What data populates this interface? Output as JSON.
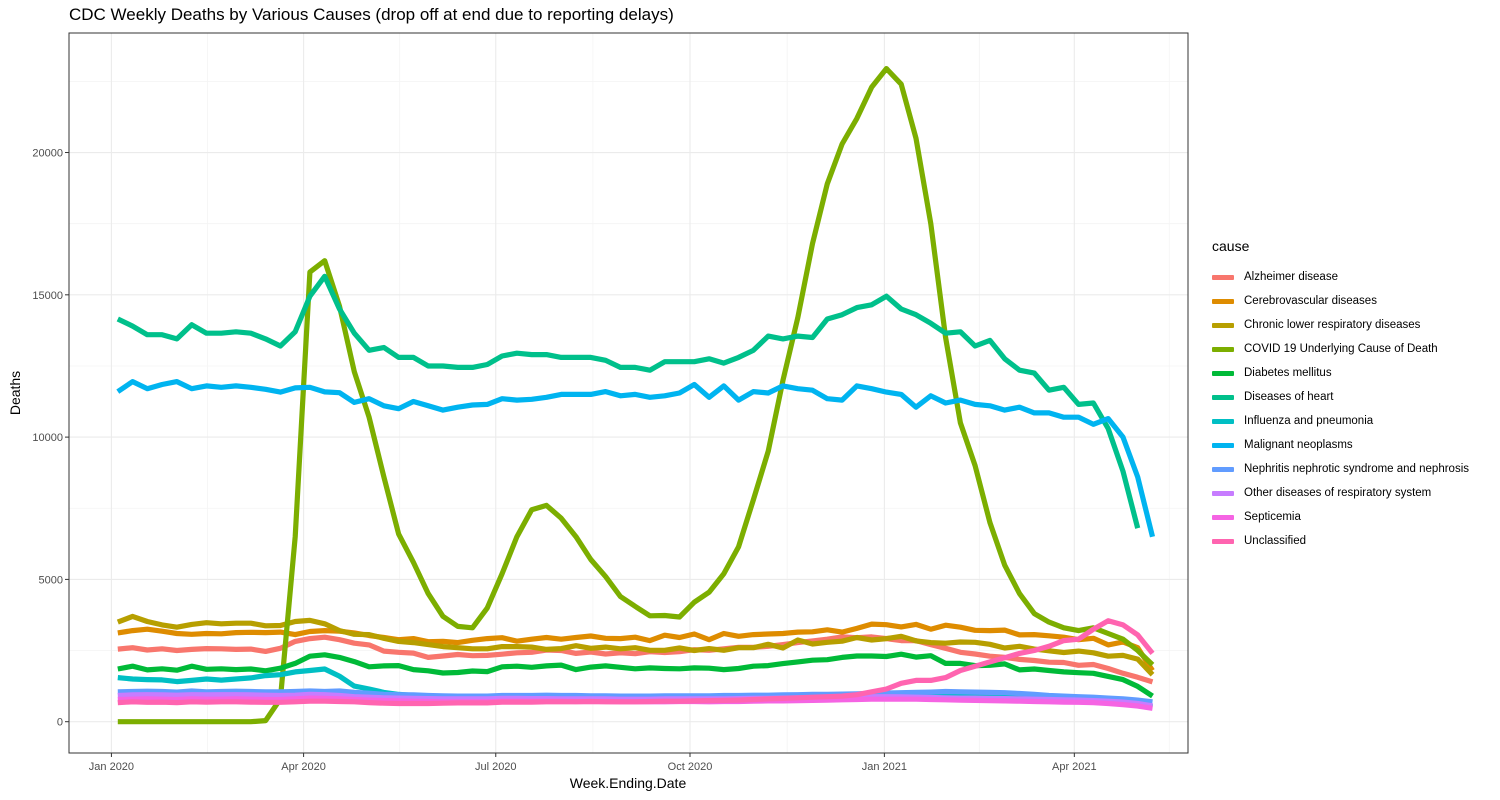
{
  "chart_data": {
    "type": "line",
    "title": "CDC Weekly Deaths by Various Causes (drop off at end due to reporting delays)",
    "xlabel": "Week.Ending.Date",
    "ylabel": "Deaths",
    "legend_title": "cause",
    "legend_position": "right",
    "grid": true,
    "x_start": "2020-01-04",
    "x_interval_days": 7,
    "x_ticks": [
      {
        "label": "Jan 2020",
        "week": -0.43
      },
      {
        "label": "Apr 2020",
        "week": 12.57
      },
      {
        "label": "Jul 2020",
        "week": 25.57
      },
      {
        "label": "Oct 2020",
        "week": 38.71
      },
      {
        "label": "Jan 2021",
        "week": 51.86
      },
      {
        "label": "Apr 2021",
        "week": 64.71
      }
    ],
    "xlim": [
      -3.3,
      72.4
    ],
    "y_ticks": [
      0,
      5000,
      10000,
      15000,
      20000
    ],
    "ylim": [
      -1100,
      24200
    ],
    "series": [
      {
        "name": "Alzheimer disease",
        "color": "#F8766D",
        "values": [
          2550,
          2600,
          2520,
          2560,
          2500,
          2540,
          2570,
          2560,
          2540,
          2550,
          2470,
          2580,
          2820,
          2920,
          2970,
          2880,
          2760,
          2700,
          2480,
          2440,
          2410,
          2260,
          2310,
          2360,
          2320,
          2330,
          2370,
          2420,
          2440,
          2520,
          2500,
          2400,
          2450,
          2380,
          2420,
          2390,
          2460,
          2430,
          2460,
          2530,
          2510,
          2560,
          2610,
          2610,
          2650,
          2710,
          2780,
          2840,
          2900,
          2980,
          2950,
          2980,
          2920,
          2850,
          2850,
          2710,
          2580,
          2440,
          2380,
          2300,
          2260,
          2190,
          2150,
          2090,
          2080,
          1980,
          2010,
          1870,
          1700,
          1560,
          1400
        ]
      },
      {
        "name": "Cerebrovascular diseases",
        "color": "#DE8C00",
        "values": [
          3120,
          3200,
          3250,
          3180,
          3100,
          3070,
          3100,
          3090,
          3130,
          3140,
          3130,
          3150,
          3060,
          3170,
          3200,
          3180,
          3120,
          3030,
          2960,
          2880,
          2920,
          2810,
          2820,
          2780,
          2860,
          2920,
          2950,
          2830,
          2900,
          2960,
          2900,
          2960,
          3010,
          2930,
          2920,
          2970,
          2850,
          3040,
          2960,
          3080,
          2880,
          3100,
          3000,
          3060,
          3080,
          3100,
          3150,
          3160,
          3230,
          3150,
          3280,
          3430,
          3410,
          3330,
          3420,
          3250,
          3390,
          3320,
          3210,
          3200,
          3220,
          3050,
          3060,
          3020,
          2970,
          2880,
          2930,
          2700,
          2800,
          2600,
          1800
        ]
      },
      {
        "name": "Chronic lower respiratory diseases",
        "color": "#B79F00",
        "values": [
          3500,
          3700,
          3520,
          3400,
          3320,
          3420,
          3480,
          3440,
          3460,
          3460,
          3370,
          3380,
          3520,
          3560,
          3440,
          3200,
          3070,
          3060,
          2930,
          2820,
          2780,
          2710,
          2640,
          2600,
          2560,
          2560,
          2640,
          2640,
          2620,
          2540,
          2570,
          2670,
          2580,
          2620,
          2560,
          2600,
          2510,
          2510,
          2590,
          2500,
          2570,
          2510,
          2600,
          2600,
          2720,
          2590,
          2870,
          2730,
          2790,
          2830,
          2960,
          2870,
          2920,
          3000,
          2840,
          2780,
          2760,
          2800,
          2790,
          2720,
          2590,
          2650,
          2550,
          2490,
          2430,
          2480,
          2420,
          2300,
          2330,
          2200,
          1650
        ]
      },
      {
        "name": "COVID 19 Underlying Cause of Death",
        "color": "#7CAE00",
        "values": [
          0,
          0,
          0,
          0,
          0,
          0,
          0,
          0,
          0,
          0,
          40,
          800,
          6500,
          15800,
          16200,
          14600,
          12300,
          10700,
          8600,
          6600,
          5600,
          4500,
          3700,
          3350,
          3300,
          4000,
          5200,
          6500,
          7450,
          7600,
          7150,
          6500,
          5700,
          5100,
          4400,
          4050,
          3720,
          3730,
          3680,
          4200,
          4550,
          5200,
          6150,
          7800,
          9500,
          12000,
          14200,
          16800,
          18900,
          20300,
          21200,
          22300,
          22950,
          22400,
          20500,
          17500,
          13500,
          10500,
          9000,
          7000,
          5500,
          4500,
          3800,
          3500,
          3300,
          3200,
          3300,
          3100,
          2900,
          2500,
          2000
        ]
      },
      {
        "name": "Diabetes mellitus",
        "color": "#00BA38",
        "values": [
          1850,
          1950,
          1820,
          1860,
          1810,
          1950,
          1840,
          1860,
          1830,
          1850,
          1790,
          1880,
          2050,
          2300,
          2350,
          2260,
          2110,
          1930,
          1960,
          1970,
          1830,
          1790,
          1710,
          1730,
          1780,
          1760,
          1930,
          1950,
          1910,
          1960,
          1990,
          1830,
          1920,
          1960,
          1910,
          1860,
          1890,
          1870,
          1860,
          1890,
          1880,
          1830,
          1870,
          1950,
          1970,
          2040,
          2100,
          2160,
          2180,
          2260,
          2310,
          2310,
          2290,
          2370,
          2270,
          2320,
          2050,
          2050,
          1970,
          1980,
          2030,
          1820,
          1850,
          1800,
          1750,
          1720,
          1700,
          1590,
          1480,
          1240,
          900
        ]
      },
      {
        "name": "Diseases of heart",
        "color": "#00C08B",
        "values": [
          14150,
          13900,
          13600,
          13600,
          13450,
          13950,
          13650,
          13650,
          13700,
          13650,
          13450,
          13200,
          13700,
          14950,
          15650,
          14500,
          13650,
          13050,
          13150,
          12800,
          12800,
          12500,
          12500,
          12450,
          12450,
          12550,
          12850,
          12950,
          12900,
          12900,
          12800,
          12800,
          12800,
          12700,
          12450,
          12450,
          12350,
          12650,
          12650,
          12650,
          12750,
          12600,
          12800,
          13050,
          13550,
          13450,
          13550,
          13500,
          14150,
          14300,
          14550,
          14650,
          14950,
          14500,
          14300,
          14000,
          13650,
          13700,
          13200,
          13400,
          12750,
          12350,
          12250,
          11650,
          11750,
          11150,
          11200,
          10300,
          8800,
          6800,
          null
        ]
      },
      {
        "name": "Influenza and pneumonia",
        "color": "#00BFC4",
        "values": [
          1550,
          1500,
          1480,
          1470,
          1410,
          1450,
          1500,
          1460,
          1500,
          1540,
          1620,
          1650,
          1750,
          1800,
          1850,
          1600,
          1250,
          1150,
          1030,
          960,
          920,
          890,
          880,
          900,
          890,
          890,
          900,
          900,
          910,
          900,
          890,
          870,
          870,
          870,
          880,
          860,
          870,
          870,
          870,
          880,
          870,
          880,
          880,
          890,
          900,
          880,
          900,
          900,
          900,
          920,
          930,
          930,
          950,
          960,
          950,
          950,
          950,
          920,
          900,
          880,
          860,
          850,
          840,
          820,
          790,
          780,
          760,
          740,
          690,
          620,
          520
        ]
      },
      {
        "name": "Malignant neoplasms",
        "color": "#00B4F0",
        "values": [
          11600,
          11950,
          11700,
          11850,
          11950,
          11700,
          11800,
          11750,
          11800,
          11750,
          11680,
          11580,
          11730,
          11750,
          11590,
          11560,
          11220,
          11350,
          11100,
          11000,
          11250,
          11100,
          10950,
          11050,
          11130,
          11150,
          11350,
          11300,
          11330,
          11400,
          11500,
          11500,
          11500,
          11600,
          11450,
          11500,
          11400,
          11450,
          11550,
          11850,
          11400,
          11800,
          11300,
          11600,
          11550,
          11800,
          11700,
          11650,
          11350,
          11300,
          11800,
          11700,
          11580,
          11500,
          11050,
          11450,
          11200,
          11300,
          11150,
          11100,
          10950,
          11050,
          10850,
          10850,
          10700,
          10700,
          10450,
          10650,
          10000,
          8600,
          6500
        ]
      },
      {
        "name": "Nephritis nephrotic syndrome and nephrosis",
        "color": "#619CFF",
        "values": [
          1050,
          1060,
          1070,
          1060,
          1040,
          1080,
          1050,
          1060,
          1070,
          1060,
          1050,
          1050,
          1060,
          1080,
          1060,
          1080,
          1030,
          1000,
          960,
          950,
          940,
          920,
          910,
          900,
          900,
          900,
          920,
          920,
          920,
          930,
          920,
          920,
          910,
          910,
          900,
          900,
          900,
          910,
          910,
          910,
          910,
          920,
          920,
          930,
          930,
          940,
          950,
          960,
          960,
          970,
          980,
          1000,
          1010,
          1020,
          1030,
          1040,
          1060,
          1050,
          1040,
          1030,
          1020,
          990,
          960,
          920,
          900,
          880,
          860,
          830,
          800,
          760,
          700
        ]
      },
      {
        "name": "Other diseases of respiratory system",
        "color": "#C77CFF",
        "values": [
          920,
          940,
          950,
          940,
          930,
          950,
          940,
          950,
          950,
          940,
          930,
          920,
          930,
          960,
          950,
          920,
          880,
          860,
          840,
          830,
          820,
          810,
          800,
          800,
          800,
          800,
          820,
          820,
          810,
          810,
          800,
          800,
          800,
          800,
          790,
          790,
          790,
          800,
          800,
          800,
          800,
          800,
          810,
          820,
          820,
          830,
          840,
          840,
          850,
          860,
          870,
          880,
          880,
          870,
          860,
          850,
          840,
          830,
          830,
          820,
          810,
          800,
          790,
          780,
          770,
          760,
          740,
          720,
          690,
          640,
          560
        ]
      },
      {
        "name": "Septicemia",
        "color": "#F564E3",
        "values": [
          780,
          790,
          800,
          790,
          780,
          800,
          790,
          790,
          800,
          790,
          780,
          780,
          800,
          830,
          820,
          800,
          780,
          760,
          740,
          730,
          720,
          710,
          700,
          700,
          700,
          700,
          720,
          720,
          720,
          720,
          720,
          710,
          710,
          710,
          700,
          700,
          700,
          700,
          710,
          710,
          700,
          710,
          710,
          720,
          730,
          730,
          740,
          750,
          760,
          770,
          780,
          790,
          790,
          790,
          790,
          780,
          770,
          760,
          750,
          740,
          730,
          720,
          710,
          700,
          690,
          680,
          670,
          640,
          600,
          550,
          470
        ]
      },
      {
        "name": "Unclassified",
        "color": "#FF64B0",
        "values": [
          670,
          700,
          680,
          690,
          670,
          700,
          690,
          700,
          700,
          690,
          680,
          680,
          700,
          720,
          720,
          710,
          700,
          670,
          650,
          640,
          640,
          640,
          650,
          660,
          660,
          660,
          690,
          690,
          690,
          700,
          700,
          700,
          710,
          700,
          700,
          700,
          710,
          720,
          720,
          730,
          740,
          750,
          760,
          780,
          800,
          820,
          840,
          860,
          880,
          900,
          950,
          1050,
          1150,
          1350,
          1450,
          1450,
          1550,
          1800,
          1950,
          2100,
          2250,
          2400,
          2500,
          2650,
          2850,
          2900,
          3250,
          3550,
          3400,
          3050,
          2400
        ]
      }
    ]
  }
}
